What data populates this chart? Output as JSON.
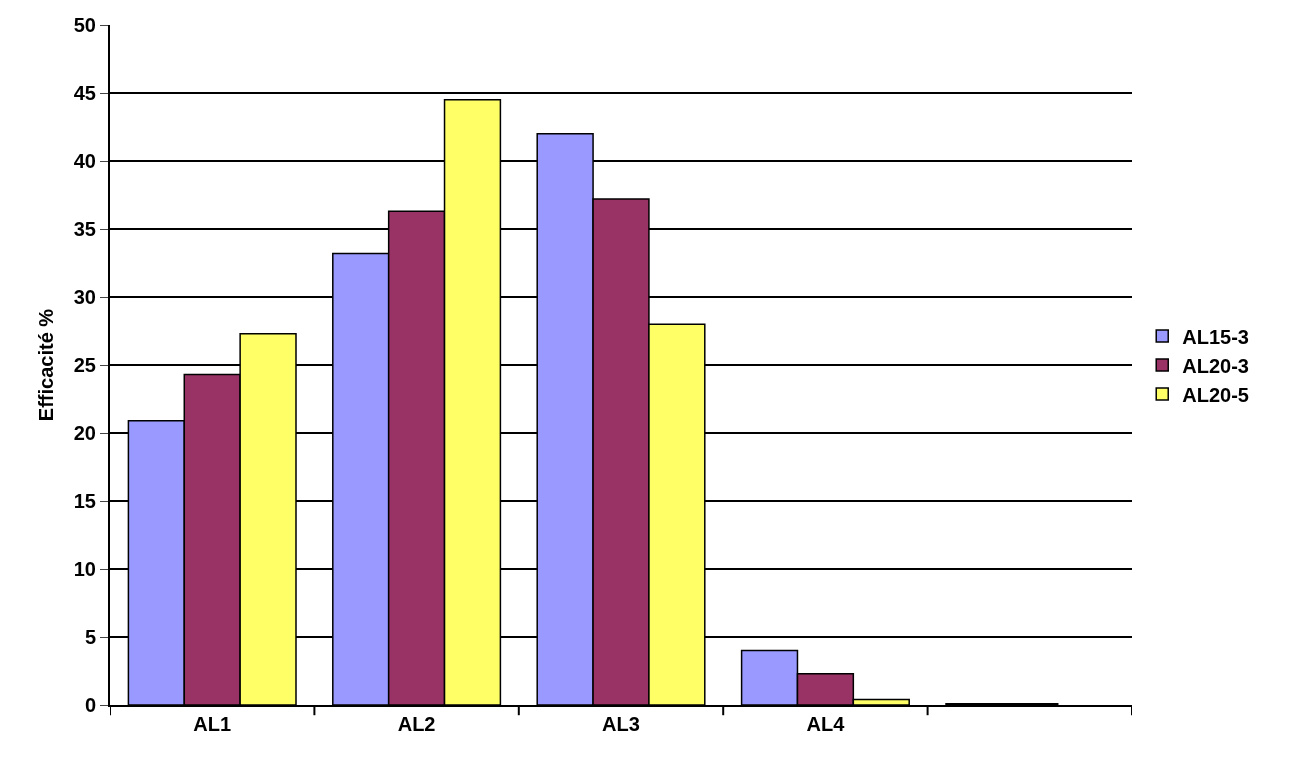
{
  "chart_data": {
    "type": "bar",
    "ylabel": "Efficacité %",
    "categories": [
      "AL1",
      "AL2",
      "AL3",
      "AL4",
      null
    ],
    "series": [
      {
        "name": "AL15-3",
        "color": "#9999ff",
        "values": [
          20.9,
          33.2,
          42.0,
          4.0,
          0.1
        ]
      },
      {
        "name": "AL20-3",
        "color": "#993366",
        "values": [
          24.3,
          36.3,
          37.2,
          2.3,
          0.1
        ]
      },
      {
        "name": "AL20-5",
        "color": "#ffff66",
        "values": [
          27.3,
          44.5,
          28.0,
          0.4,
          null
        ]
      }
    ],
    "ylim": [
      0,
      50
    ],
    "yticks": [
      0,
      5,
      10,
      15,
      20,
      25,
      30,
      35,
      40,
      45,
      50
    ],
    "grid": "y",
    "legend": "right"
  }
}
